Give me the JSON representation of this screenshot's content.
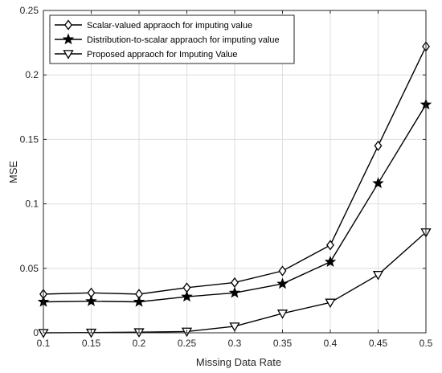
{
  "chart_data": {
    "type": "line",
    "title": "",
    "xlabel": "Missing Data Rate",
    "ylabel": "MSE",
    "x": [
      0.1,
      0.15,
      0.2,
      0.25,
      0.3,
      0.35,
      0.4,
      0.45,
      0.5
    ],
    "xlim": [
      0.1,
      0.5
    ],
    "ylim": [
      0,
      0.25
    ],
    "xticks": [
      "0.1",
      "0.15",
      "0.2",
      "0.25",
      "0.3",
      "0.35",
      "0.4",
      "0.45",
      "0.5"
    ],
    "yticks": [
      "0",
      "0.05",
      "0.1",
      "0.15",
      "0.2",
      "0.25"
    ],
    "grid": true,
    "legend_position": "top-left",
    "series": [
      {
        "name": "Scalar-valued appraoch for imputing value",
        "marker": "diamond",
        "color": "#000000",
        "values": [
          0.03,
          0.031,
          0.03,
          0.035,
          0.039,
          0.048,
          0.068,
          0.145,
          0.222
        ]
      },
      {
        "name": "Distribution-to-scalar appraoch for imputing value",
        "marker": "star",
        "color": "#000000",
        "values": [
          0.024,
          0.0245,
          0.024,
          0.028,
          0.031,
          0.038,
          0.055,
          0.116,
          0.177
        ]
      },
      {
        "name": "Proposed  appraoch for Imputing Value",
        "marker": "triangle-down",
        "color": "#000000",
        "values": [
          0.0,
          0.0002,
          0.0005,
          0.001,
          0.005,
          0.015,
          0.0235,
          0.045,
          0.078
        ]
      }
    ]
  }
}
